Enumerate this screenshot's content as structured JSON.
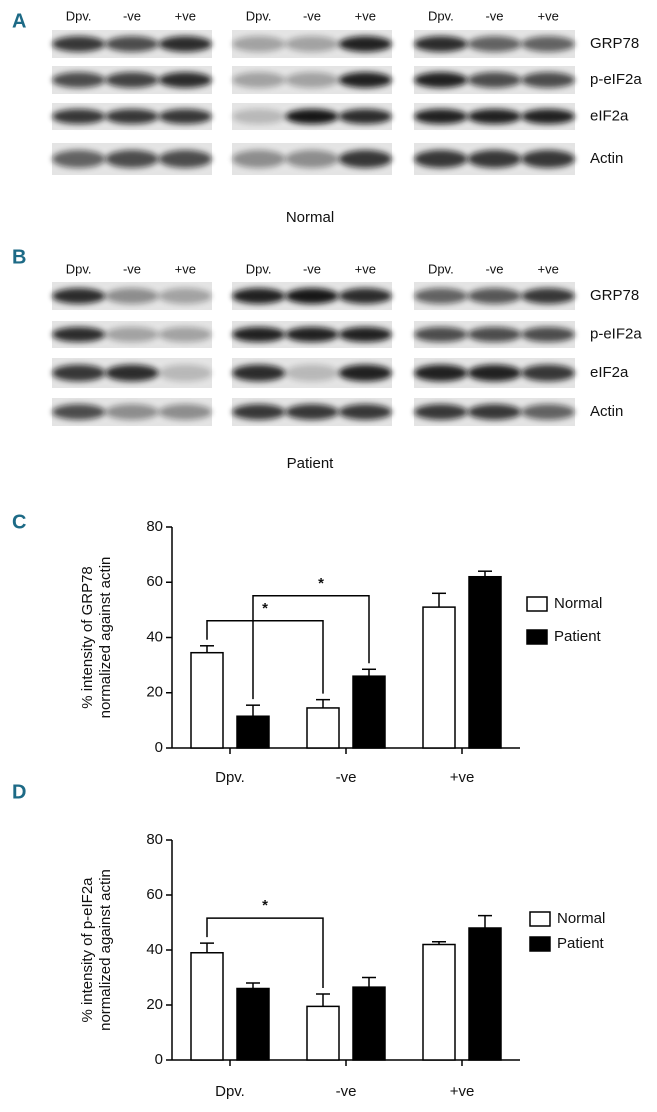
{
  "blots": [
    {
      "label": "A",
      "lanes": [
        "Dpv.",
        "-ve",
        "+ve"
      ],
      "proteins": [
        "GRP78",
        "p-eIF2a",
        "eIF2a",
        "Actin"
      ],
      "caption": "Normal"
    },
    {
      "label": "B",
      "lanes": [
        "Dpv.",
        "-ve",
        "+ve"
      ],
      "proteins": [
        "GRP78",
        "p-eIF2a",
        "eIF2a",
        "Actin"
      ],
      "caption": "Patient"
    }
  ],
  "chart_data": [
    {
      "type": "bar",
      "panel_label": "C",
      "ylabel": [
        "% intensity of GRP78",
        "normalized against actin"
      ],
      "categories": [
        "Dpv.",
        "-ve",
        "+ve"
      ],
      "series": [
        {
          "name": "Normal",
          "color": "#ffffff",
          "values": [
            34.5,
            14.5,
            51
          ],
          "errors": [
            2.5,
            3,
            5
          ]
        },
        {
          "name": "Patient",
          "color": "#000000",
          "values": [
            11.5,
            26,
            62
          ],
          "errors": [
            4,
            2.5,
            2
          ]
        }
      ],
      "ylim": [
        0,
        80
      ],
      "yticks": [
        0,
        20,
        40,
        60,
        80
      ],
      "significance": [
        {
          "text": "*",
          "series": "Normal",
          "categories": [
            "Dpv.",
            "-ve"
          ]
        },
        {
          "text": "*",
          "series": "Patient",
          "categories": [
            "Dpv.",
            "-ve"
          ]
        }
      ]
    },
    {
      "type": "bar",
      "panel_label": "D",
      "ylabel": [
        "% intensity of p-eIF2a",
        "normalized against actin"
      ],
      "categories": [
        "Dpv.",
        "-ve",
        "+ve"
      ],
      "series": [
        {
          "name": "Normal",
          "color": "#ffffff",
          "values": [
            39,
            19.5,
            42
          ],
          "errors": [
            3.5,
            4.5,
            1
          ]
        },
        {
          "name": "Patient",
          "color": "#000000",
          "values": [
            26,
            26.5,
            48
          ],
          "errors": [
            2,
            3.5,
            4.5
          ]
        }
      ],
      "ylim": [
        0,
        80
      ],
      "yticks": [
        0,
        20,
        40,
        60,
        80
      ],
      "significance": [
        {
          "text": "*",
          "series": "Normal",
          "categories": [
            "Dpv.",
            "-ve"
          ]
        }
      ]
    }
  ]
}
